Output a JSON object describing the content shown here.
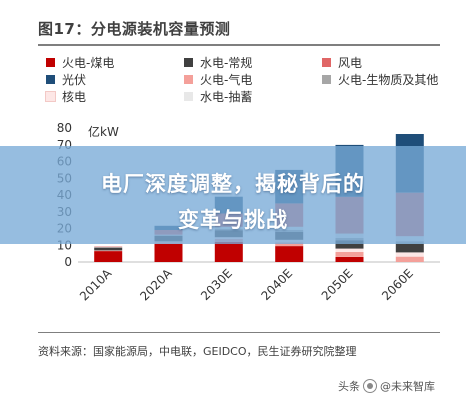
{
  "title": "图17：分电源装机容量预测",
  "source": "资料来源：国家能源局，中电联，GEIDCO，民生证券研究院整理",
  "banner": {
    "line1": "电厂深度调整，揭秘背后的",
    "line2": "变革与挑战"
  },
  "watermark": {
    "prefix": "头条",
    "handle": "@未来智库"
  },
  "chart_data": {
    "type": "bar",
    "stacked": true,
    "ylabel": "亿kW",
    "ylim": [
      0,
      80
    ],
    "yticks": [
      0,
      10,
      20,
      30,
      40,
      50,
      60,
      70,
      80
    ],
    "categories": [
      "2010A",
      "2020A",
      "2030E",
      "2040E",
      "2050E",
      "2060E"
    ],
    "series": [
      {
        "name": "火电-煤电",
        "color": "#c00000",
        "values": [
          6.5,
          10.8,
          12.0,
          9.5,
          3.0,
          0.0
        ]
      },
      {
        "name": "火电-气电",
        "color": "#f4a09a",
        "values": [
          0.3,
          1.0,
          1.8,
          2.2,
          3.0,
          3.2
        ]
      },
      {
        "name": "核电",
        "color": "#fde7e6",
        "values": [
          0.1,
          0.5,
          1.0,
          1.5,
          2.0,
          2.5
        ]
      },
      {
        "name": "水电-常规",
        "color": "#404040",
        "values": [
          1.7,
          3.4,
          4.2,
          4.8,
          5.0,
          5.2
        ]
      },
      {
        "name": "火电-生物质及其他",
        "color": "#a6a6a6",
        "values": [
          0.1,
          0.3,
          0.8,
          1.2,
          1.4,
          1.5
        ]
      },
      {
        "name": "水电-抽蓄",
        "color": "#e8e8e8",
        "values": [
          0.2,
          0.3,
          1.2,
          1.8,
          2.5,
          3.0
        ]
      },
      {
        "name": "风电",
        "color": "#e06666",
        "values": [
          0.3,
          2.8,
          8.0,
          14.0,
          22.0,
          26.0
        ]
      },
      {
        "name": "光伏",
        "color": "#1f4e79",
        "values": [
          0.0,
          2.5,
          10.0,
          20.0,
          31.0,
          35.0
        ]
      }
    ],
    "legend": [
      {
        "name": "火电-煤电",
        "color": "#c00000"
      },
      {
        "name": "水电-常规",
        "color": "#404040"
      },
      {
        "name": "风电",
        "color": "#e06666"
      },
      {
        "name": "光伏",
        "color": "#1f4e79"
      },
      {
        "name": "火电-气电",
        "color": "#f4a09a"
      },
      {
        "name": "火电-生物质及其他",
        "color": "#a6a6a6"
      },
      {
        "name": "核电",
        "color": "#fde7e6"
      },
      {
        "name": "水电-抽蓄",
        "color": "#e8e8e8"
      }
    ]
  }
}
